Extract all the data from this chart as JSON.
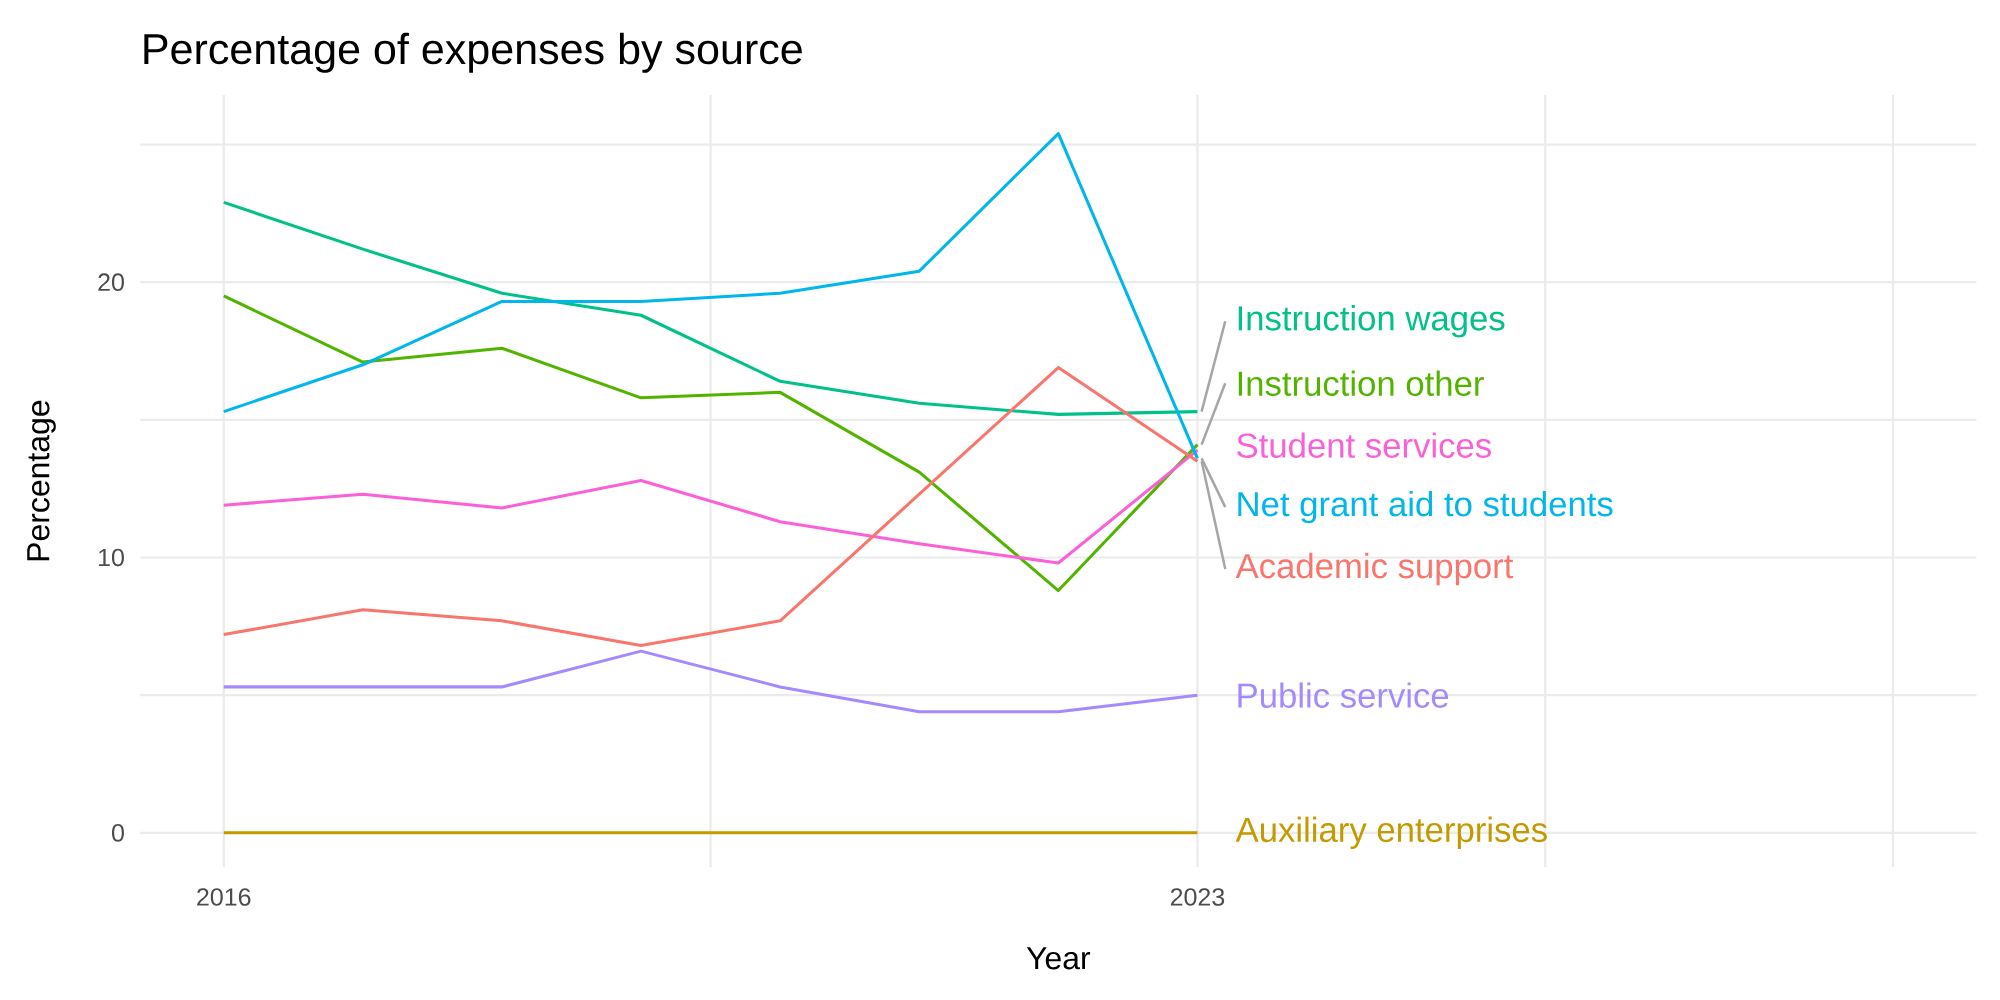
{
  "chart_data": {
    "type": "line",
    "title": "Percentage of expenses by source",
    "xlabel": "Year",
    "ylabel": "Percentage",
    "x": [
      2016,
      2017,
      2018,
      2019,
      2020,
      2021,
      2022,
      2023
    ],
    "series": [
      {
        "name": "Instruction wages",
        "color": "#00C08B",
        "values": [
          22.9,
          21.2,
          19.6,
          18.8,
          16.4,
          15.6,
          15.2,
          15.3
        ]
      },
      {
        "name": "Instruction other",
        "color": "#53B400",
        "values": [
          19.5,
          17.1,
          17.6,
          15.8,
          16.0,
          13.1,
          8.8,
          14.1
        ]
      },
      {
        "name": "Student services",
        "color": "#FB61D7",
        "values": [
          11.9,
          12.3,
          11.8,
          12.8,
          11.3,
          10.5,
          9.8,
          13.9
        ]
      },
      {
        "name": "Net grant aid to students",
        "color": "#00B6EB",
        "values": [
          15.3,
          17.0,
          19.3,
          19.3,
          19.6,
          20.4,
          25.4,
          13.6
        ]
      },
      {
        "name": "Academic support",
        "color": "#F8766D",
        "values": [
          7.2,
          8.1,
          7.7,
          6.8,
          7.7,
          12.3,
          16.9,
          13.5
        ]
      },
      {
        "name": "Public service",
        "color": "#A58AFF",
        "values": [
          5.3,
          5.3,
          5.3,
          6.6,
          5.3,
          4.4,
          4.4,
          5.0
        ]
      },
      {
        "name": "Auxiliary enterprises",
        "color": "#C49A00",
        "values": [
          0,
          0,
          0,
          0,
          0,
          0,
          0,
          0
        ]
      }
    ],
    "xlim": [
      2015.4,
      2028.6
    ],
    "ylim": [
      -1.25,
      26.8
    ],
    "xticks": [
      2016,
      {
        "value": 2019.5,
        "label": null
      },
      2023,
      {
        "value": 2025.5,
        "label": null
      },
      {
        "value": 2028,
        "label": null
      }
    ],
    "yticks": [
      0,
      {
        "value": 5,
        "label": null
      },
      10,
      {
        "value": 15,
        "label": null
      },
      20,
      {
        "value": 25,
        "label": null
      }
    ],
    "grid": true,
    "legend": false,
    "line_style": "solid",
    "marker": "none"
  }
}
